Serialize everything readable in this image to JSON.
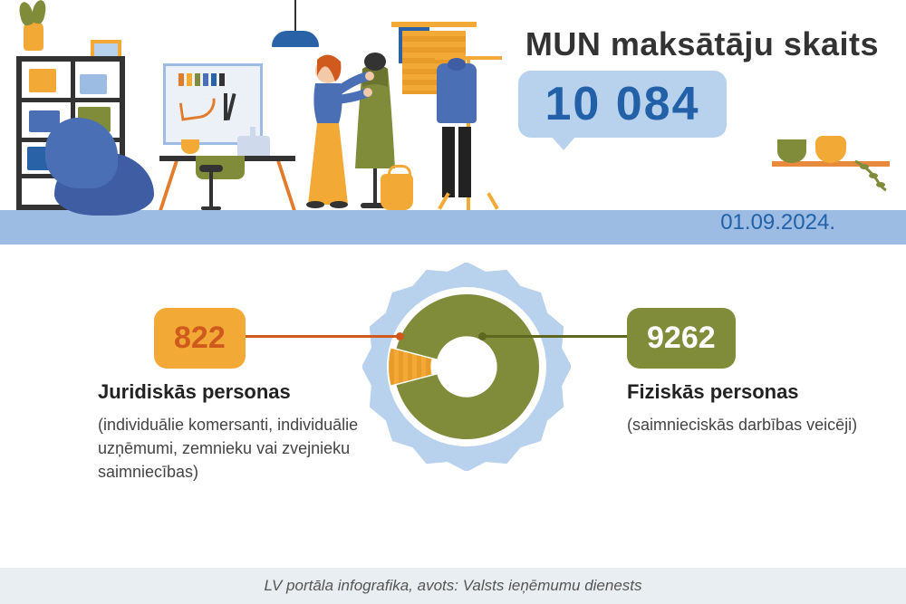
{
  "header": {
    "title": "MUN maksātāju skaits",
    "total_value": "10 084",
    "date": "01.09.2024.",
    "title_color": "#333333",
    "total_box_bg": "#b8d1ec",
    "total_text_color": "#2261a8",
    "date_color": "#2261a8",
    "floor_color": "#9cbce4"
  },
  "illustration": {
    "palette": {
      "orange": "#f2a935",
      "dark_orange": "#e27b2b",
      "olive": "#818c3b",
      "navy": "#3e5da3",
      "blue": "#4a6fb5",
      "light_blue": "#b8d1ec",
      "dark": "#333333"
    }
  },
  "donut": {
    "type": "donut",
    "total": 10084,
    "inner_radius_ratio": 0.42,
    "scallop_border_color": "#b8d1ec",
    "background_color": "#ffffff",
    "segments": [
      {
        "key": "legal",
        "value": 822,
        "color": "#f2a935",
        "stripe_overlay": true,
        "stripe_color": "#e89b28",
        "label_box_bg": "#f2a935",
        "label_text_color": "#d05a1e",
        "connector_color": "#d05a1e",
        "title": "Juridiskās personas",
        "subtitle": "(individuālie komersanti, individuālie uzņēmumi, zemnieku vai zvejnieku saimniecības)"
      },
      {
        "key": "natural",
        "value": 9262,
        "color": "#818c3b",
        "stripe_overlay": false,
        "label_box_bg": "#818c3b",
        "label_text_color": "#ffffff",
        "connector_color": "#5e671f",
        "title": "Fiziskās personas",
        "subtitle": "(saimnieciskās darbības veicēji)"
      }
    ],
    "label_fontsize": 34,
    "title_fontsize": 22,
    "subtitle_fontsize": 18
  },
  "footer": {
    "text": "LV portāla infografika, avots: Valsts ieņēmumu dienests",
    "bg": "#e8eef1",
    "color": "#555555"
  }
}
